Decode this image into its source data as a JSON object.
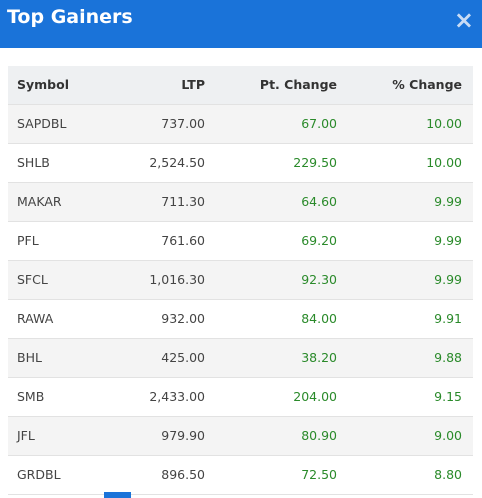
{
  "header": {
    "title": "Top Gainers",
    "close": "×"
  },
  "table": {
    "columns": [
      "Symbol",
      "LTP",
      "Pt. Change",
      "% Change"
    ],
    "rows": [
      [
        "SAPDBL",
        "737.00",
        "67.00",
        "10.00"
      ],
      [
        "SHLB",
        "2,524.50",
        "229.50",
        "10.00"
      ],
      [
        "MAKAR",
        "711.30",
        "64.60",
        "9.99"
      ],
      [
        "PFL",
        "761.60",
        "69.20",
        "9.99"
      ],
      [
        "SFCL",
        "1,016.30",
        "92.30",
        "9.99"
      ],
      [
        "RAWA",
        "932.00",
        "84.00",
        "9.91"
      ],
      [
        "BHL",
        "425.00",
        "38.20",
        "9.88"
      ],
      [
        "SMB",
        "2,433.00",
        "204.00",
        "9.15"
      ],
      [
        "JFL",
        "979.90",
        "80.90",
        "9.00"
      ],
      [
        "GRDBL",
        "896.50",
        "72.50",
        "8.80"
      ]
    ]
  }
}
